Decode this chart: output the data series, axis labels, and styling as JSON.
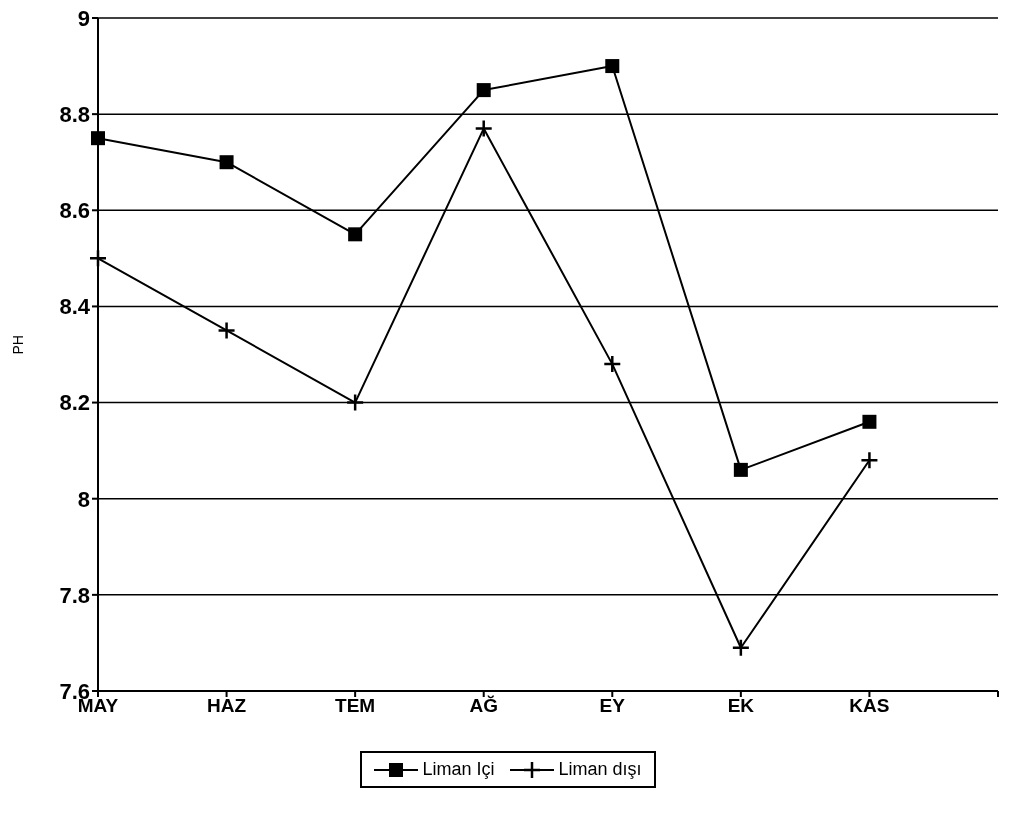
{
  "chart_data": {
    "type": "line",
    "ylabel": "PH",
    "categories": [
      "MAY",
      "HAZ",
      "TEM",
      "AĞ",
      "EY",
      "EK",
      "KAS",
      null
    ],
    "series": [
      {
        "name": "Liman Içi",
        "color": "#000000",
        "marker": "square",
        "values": [
          8.75,
          8.7,
          8.55,
          8.85,
          8.9,
          8.06,
          8.16,
          null
        ]
      },
      {
        "name": "Liman dışı",
        "color": "#000000",
        "marker": "cross",
        "values": [
          8.5,
          8.35,
          8.2,
          8.77,
          8.28,
          7.69,
          8.08,
          null
        ]
      }
    ],
    "ylim": [
      7.6,
      9
    ],
    "yticks": [
      7.6,
      7.8,
      8,
      8.2,
      8.4,
      8.6,
      8.8,
      9
    ],
    "grid": "y",
    "legend": "bottom"
  }
}
